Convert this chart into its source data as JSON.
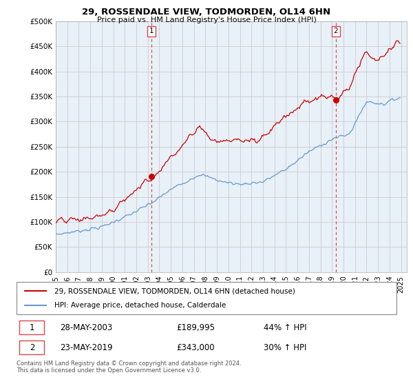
{
  "title": "29, ROSSENDALE VIEW, TODMORDEN, OL14 6HN",
  "subtitle": "Price paid vs. HM Land Registry's House Price Index (HPI)",
  "ylabel_ticks": [
    "£0",
    "£50K",
    "£100K",
    "£150K",
    "£200K",
    "£250K",
    "£300K",
    "£350K",
    "£400K",
    "£450K",
    "£500K"
  ],
  "ytick_vals": [
    0,
    50000,
    100000,
    150000,
    200000,
    250000,
    300000,
    350000,
    400000,
    450000,
    500000
  ],
  "ylim": [
    0,
    500000
  ],
  "sale1_price": 189995,
  "sale1_date_str": "28-MAY-2003",
  "sale1_price_str": "£189,995",
  "sale1_hpi_str": "44% ↑ HPI",
  "sale2_price": 343000,
  "sale2_date_str": "23-MAY-2019",
  "sale2_price_str": "£343,000",
  "sale2_hpi_str": "30% ↑ HPI",
  "legend_line1": "29, ROSSENDALE VIEW, TODMORDEN, OL14 6HN (detached house)",
  "legend_line2": "HPI: Average price, detached house, Calderdale",
  "footer1": "Contains HM Land Registry data © Crown copyright and database right 2024.",
  "footer2": "This data is licensed under the Open Government Licence v3.0.",
  "hpi_color": "#6699cc",
  "price_color": "#cc0000",
  "sale_marker_color": "#cc0000",
  "vline_color": "#dd4444",
  "background_color": "#ffffff",
  "grid_color": "#cccccc",
  "chart_bg": "#e8f0f8"
}
